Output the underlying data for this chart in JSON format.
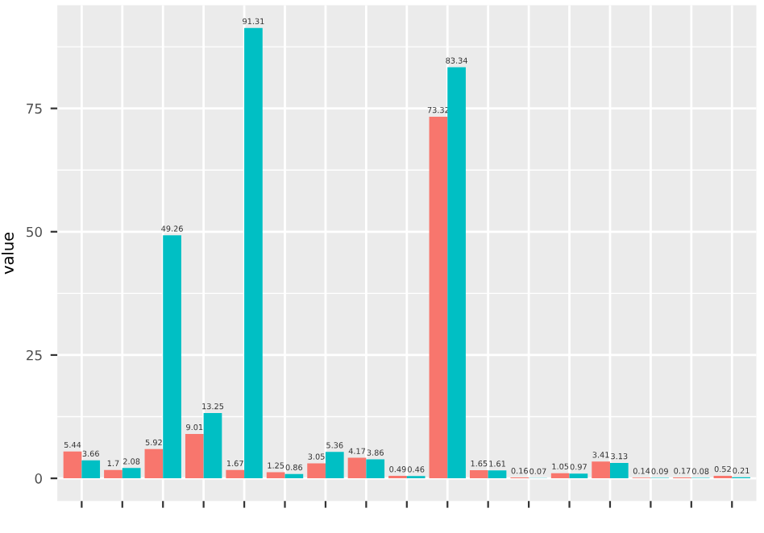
{
  "chart_data": {
    "type": "bar",
    "ylabel": "value",
    "categories": [
      null,
      null,
      null,
      null,
      null,
      null,
      null,
      null,
      null,
      null,
      null,
      null,
      null,
      null,
      null,
      null,
      null
    ],
    "series": [
      {
        "color": "#f8766d",
        "values": [
          5.44,
          1.7,
          5.92,
          9.01,
          1.67,
          1.25,
          3.05,
          4.17,
          0.49,
          73.32,
          1.65,
          0.16,
          1.05,
          3.41,
          0.14,
          0.17,
          0.52
        ]
      },
      {
        "color": "#00bfc4",
        "values": [
          3.66,
          2.08,
          49.26,
          13.25,
          91.31,
          0.86,
          5.36,
          3.86,
          0.46,
          83.34,
          1.61,
          0.07,
          0.97,
          3.13,
          0.09,
          0.08,
          0.21
        ]
      }
    ],
    "ylim": [
      -4.6,
      95.9
    ],
    "yticks": [
      0,
      25,
      50,
      75
    ],
    "grid": true,
    "data_labels": true,
    "tick_labels": "y"
  }
}
